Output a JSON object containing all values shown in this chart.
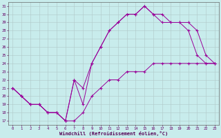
{
  "xlabel": "Windchill (Refroidissement éolien,°C)",
  "bg_color": "#c8ecec",
  "line_color": "#990099",
  "grid_color": "#b0c8c8",
  "xlim": [
    -0.5,
    23.5
  ],
  "ylim": [
    16.5,
    31.5
  ],
  "xticks": [
    0,
    1,
    2,
    3,
    4,
    5,
    6,
    7,
    8,
    9,
    10,
    11,
    12,
    13,
    14,
    15,
    16,
    17,
    18,
    19,
    20,
    21,
    22,
    23
  ],
  "yticks": [
    17,
    18,
    19,
    20,
    21,
    22,
    23,
    24,
    25,
    26,
    27,
    28,
    29,
    30,
    31
  ],
  "line1_x": [
    0,
    1,
    2,
    3,
    4,
    5,
    6,
    7,
    8,
    9,
    10,
    11,
    12,
    13,
    14,
    15,
    16,
    17,
    18,
    19,
    20,
    21,
    22,
    23
  ],
  "line1_y": [
    21,
    20,
    19,
    19,
    18,
    18,
    17,
    22,
    19,
    24,
    26,
    28,
    29,
    30,
    30,
    31,
    30,
    30,
    29,
    29,
    28,
    25,
    24,
    24
  ],
  "line2_x": [
    0,
    1,
    2,
    3,
    4,
    5,
    6,
    7,
    8,
    9,
    10,
    11,
    12,
    13,
    14,
    15,
    16,
    17,
    18,
    19,
    20,
    21,
    22,
    23
  ],
  "line2_y": [
    21,
    20,
    19,
    19,
    18,
    18,
    17,
    22,
    21,
    24,
    26,
    28,
    29,
    30,
    30,
    31,
    30,
    29,
    29,
    29,
    29,
    28,
    25,
    24
  ],
  "line3_x": [
    0,
    1,
    2,
    3,
    4,
    5,
    6,
    7,
    8,
    9,
    10,
    11,
    12,
    13,
    14,
    15,
    16,
    17,
    18,
    19,
    20,
    21,
    22,
    23
  ],
  "line3_y": [
    21,
    20,
    19,
    19,
    18,
    18,
    17,
    17,
    18,
    20,
    21,
    22,
    22,
    23,
    23,
    23,
    24,
    24,
    24,
    24,
    24,
    24,
    24,
    24
  ]
}
